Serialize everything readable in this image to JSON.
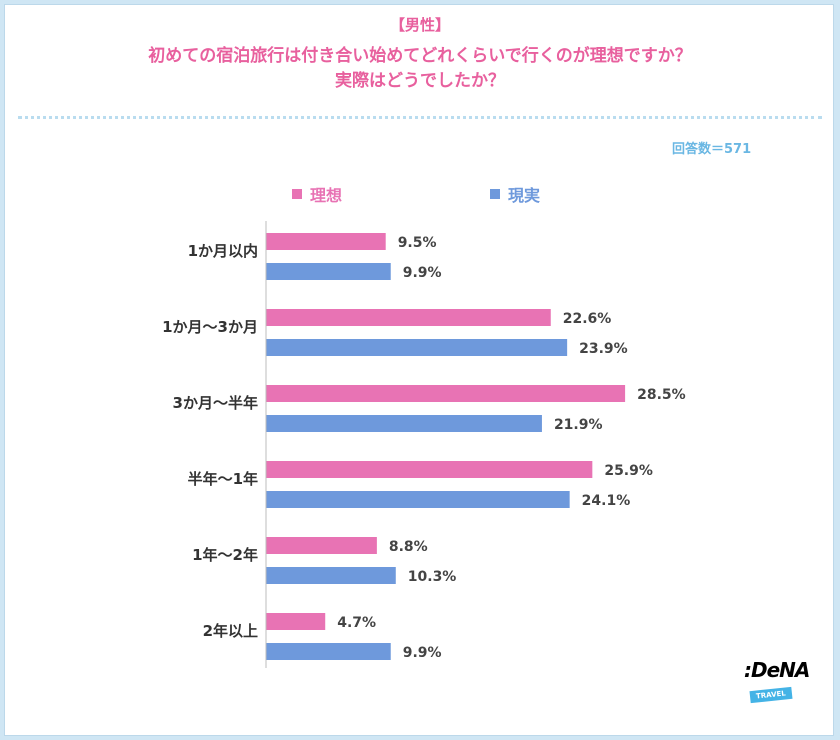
{
  "header": {
    "subtitle": "【男性】",
    "title_line1": "初めての宿泊旅行は付き合い始めてどれくらいで行くのが理想ですか？",
    "title_line2": "実際はどうでしたか？",
    "sample_size": "回答数＝571"
  },
  "colors": {
    "accent": "#e8609e",
    "ideal": "#e873b4",
    "actual": "#6e99dc",
    "sample": "#6ab7e3"
  },
  "brand": {
    "name": ":DeNA",
    "sub": "TRAVEL",
    "sub_color": "#44b3e6"
  },
  "chart_data": {
    "type": "bar",
    "orientation": "horizontal",
    "title": "初めての宿泊旅行は付き合い始めてどれくらいで行くのが理想ですか？実際はどうでしたか？",
    "categories": [
      "1か月以内",
      "1か月～3か月",
      "3か月～半年",
      "半年～1年",
      "1年～2年",
      "2年以上"
    ],
    "series": [
      {
        "name": "理想",
        "values": [
          9.5,
          22.6,
          28.5,
          25.9,
          8.8,
          4.7
        ],
        "labels": [
          "9.5%",
          "22.6%",
          "28.5%",
          "25.9%",
          "8.8%",
          "4.7%"
        ]
      },
      {
        "name": "現実",
        "values": [
          9.9,
          23.9,
          21.9,
          24.1,
          10.3,
          9.9
        ],
        "labels": [
          "9.9%",
          "23.9%",
          "21.9%",
          "24.1%",
          "10.3%",
          "9.9%"
        ]
      }
    ],
    "unit": "%",
    "legend": "top",
    "grid": false
  }
}
